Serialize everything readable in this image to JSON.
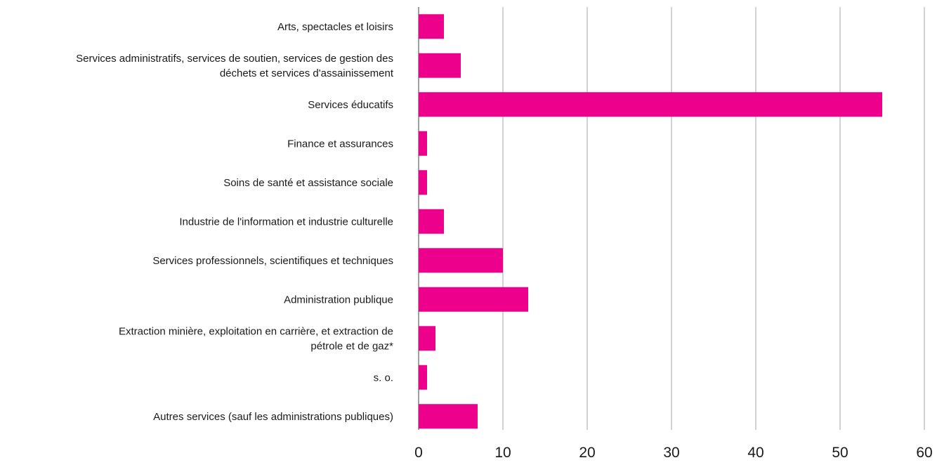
{
  "chart_data": {
    "type": "bar",
    "orientation": "horizontal",
    "categories": [
      [
        "Arts, spectacles et loisirs"
      ],
      [
        "Services administratifs, services de soutien, services de gestion des",
        "déchets et services d'assainissement"
      ],
      [
        "Services éducatifs"
      ],
      [
        "Finance et assurances"
      ],
      [
        "Soins de santé et assistance sociale"
      ],
      [
        "Industrie de l'information et industrie culturelle"
      ],
      [
        "Services professionnels, scientifiques et techniques"
      ],
      [
        "Administration publique"
      ],
      [
        "Extraction minière, exploitation en carrière, et extraction de",
        "pétrole et de gaz*"
      ],
      [
        "s. o."
      ],
      [
        "Autres services (sauf les administrations publiques)"
      ]
    ],
    "values": [
      3,
      5,
      55,
      1,
      1,
      3,
      10,
      13,
      2,
      1,
      7
    ],
    "xlim": [
      0,
      60
    ],
    "xticks": [
      0,
      10,
      20,
      30,
      40,
      50,
      60
    ],
    "grid": true,
    "bar_color": "#ec008c",
    "grid_color": "#a6a6a6",
    "axis_color": "#808080"
  }
}
